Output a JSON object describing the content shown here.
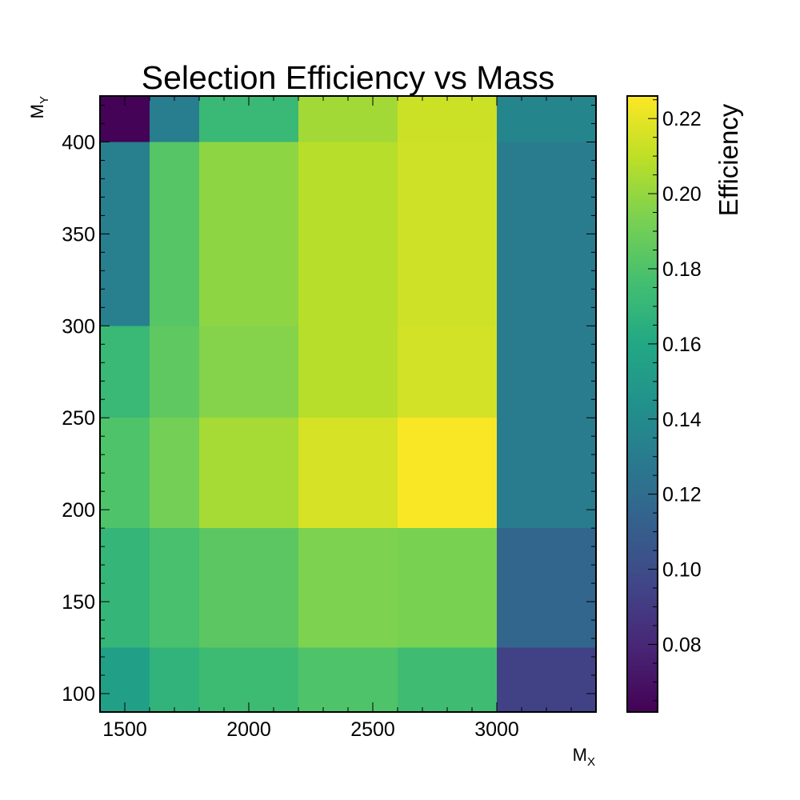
{
  "chart_data": {
    "type": "heatmap",
    "title": "Selection Efficiency vs Mass",
    "xlabel": {
      "main": "M",
      "sub": "X"
    },
    "ylabel": {
      "main": "M",
      "sub": "Y"
    },
    "colorbar_label": "Efficiency",
    "colormap": "viridis",
    "x_edges": [
      1400,
      1600,
      1800,
      2200,
      2600,
      3000,
      3400
    ],
    "y_edges": [
      90,
      125,
      190,
      250,
      300,
      400,
      425
    ],
    "xlim": [
      1400,
      3400
    ],
    "ylim": [
      90,
      425
    ],
    "x_ticks": [
      1500,
      2000,
      2500,
      3000
    ],
    "y_ticks": [
      100,
      150,
      200,
      250,
      300,
      350,
      400
    ],
    "color_range": [
      0.062,
      0.226
    ],
    "color_ticks": [
      "0.08",
      "0.10",
      "0.12",
      "0.14",
      "0.16",
      "0.18",
      "0.20",
      "0.22"
    ],
    "z": [
      [
        0.155,
        0.168,
        0.174,
        0.18,
        0.175,
        0.094
      ],
      [
        0.17,
        0.178,
        0.184,
        0.194,
        0.193,
        0.116
      ],
      [
        0.18,
        0.191,
        0.204,
        0.216,
        0.225,
        0.13
      ],
      [
        0.172,
        0.185,
        0.196,
        0.208,
        0.215,
        0.13
      ],
      [
        0.132,
        0.182,
        0.198,
        0.208,
        0.214,
        0.13
      ],
      [
        0.063,
        0.131,
        0.172,
        0.203,
        0.213,
        0.136
      ]
    ]
  }
}
